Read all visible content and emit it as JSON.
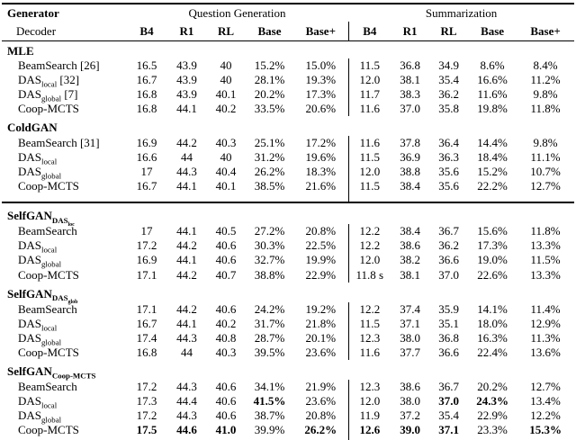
{
  "page": {
    "background": "#ffffff",
    "text_color": "#000000"
  },
  "table": {
    "header": {
      "generator_label": "Generator",
      "decoder_label": "Decoder",
      "group_question_generation": "Question Generation",
      "group_summarization": "Summarization",
      "metrics": [
        "B4",
        "R1",
        "RL",
        "Base",
        "Base+"
      ]
    },
    "sections": [
      {
        "title": "MLE",
        "rows": [
          {
            "label": "BeamSearch [26]",
            "values": [
              "16.5",
              "43.9",
              "40",
              "15.2%",
              "15.0%",
              "11.5",
              "36.8",
              "34.9",
              "8.6%",
              "8.4%"
            ],
            "bold": []
          },
          {
            "label": "DAS_{local} [32]",
            "values": [
              "16.7",
              "43.9",
              "40",
              "28.1%",
              "19.3%",
              "12.0",
              "38.1",
              "35.4",
              "16.6%",
              "11.2%"
            ],
            "bold": []
          },
          {
            "label": "DAS_{global} [7]",
            "values": [
              "16.8",
              "43.9",
              "40.1",
              "20.2%",
              "17.3%",
              "11.7",
              "38.3",
              "36.2",
              "11.6%",
              "9.8%"
            ],
            "bold": []
          },
          {
            "label": "Coop-MCTS",
            "values": [
              "16.8",
              "44.1",
              "40.2",
              "33.5%",
              "20.6%",
              "11.6",
              "37.0",
              "35.8",
              "19.8%",
              "11.8%"
            ],
            "bold": []
          }
        ]
      },
      {
        "title": "ColdGAN",
        "rows": [
          {
            "label": "BeamSearch [31]",
            "values": [
              "16.9",
              "44.2",
              "40.3",
              "25.1%",
              "17.2%",
              "11.6",
              "37.8",
              "36.4",
              "14.4%",
              "9.8%"
            ],
            "bold": []
          },
          {
            "label": "DAS_{local}",
            "values": [
              "16.6",
              "44",
              "40",
              "31.2%",
              "19.6%",
              "11.5",
              "36.9",
              "36.3",
              "18.4%",
              "11.1%"
            ],
            "bold": []
          },
          {
            "label": "DAS_{global}",
            "values": [
              "17",
              "44.3",
              "40.4",
              "26.2%",
              "18.3%",
              "12.0",
              "38.8",
              "35.6",
              "15.2%",
              "10.7%"
            ],
            "bold": []
          },
          {
            "label": "Coop-MCTS",
            "values": [
              "16.7",
              "44.1",
              "40.1",
              "38.5%",
              "21.6%",
              "11.5",
              "38.4",
              "35.6",
              "22.2%",
              "12.7%"
            ],
            "bold": []
          }
        ]
      },
      {
        "title": "SelfGAN_{DAS_{loc}}",
        "divider_above": true,
        "rows": [
          {
            "label": "BeamSearch",
            "values": [
              "17",
              "44.1",
              "40.5",
              "27.2%",
              "20.8%",
              "12.2",
              "38.4",
              "36.7",
              "15.6%",
              "11.8%"
            ],
            "bold": []
          },
          {
            "label": "DAS_{local}",
            "values": [
              "17.2",
              "44.2",
              "40.6",
              "30.3%",
              "22.5%",
              "12.2",
              "38.6",
              "36.2",
              "17.3%",
              "13.3%"
            ],
            "bold": []
          },
          {
            "label": "DAS_{global}",
            "values": [
              "16.9",
              "44.1",
              "40.6",
              "32.7%",
              "19.9%",
              "12.0",
              "38.2",
              "36.6",
              "19.0%",
              "11.5%"
            ],
            "bold": []
          },
          {
            "label": "Coop-MCTS",
            "values": [
              "17.1",
              "44.2",
              "40.7",
              "38.8%",
              "22.9%",
              "11.8 s",
              "38.1",
              "37.0",
              "22.6%",
              "13.3%"
            ],
            "bold": []
          }
        ]
      },
      {
        "title": "SelfGAN_{DAS_{glob}}",
        "rows": [
          {
            "label": "BeamSearch",
            "values": [
              "17.1",
              "44.2",
              "40.6",
              "24.2%",
              "19.2%",
              "12.2",
              "37.4",
              "35.9",
              "14.1%",
              "11.4%"
            ],
            "bold": []
          },
          {
            "label": "DAS_{local}",
            "values": [
              "16.7",
              "44.1",
              "40.2",
              "31.7%",
              "21.8%",
              "11.5",
              "37.1",
              "35.1",
              "18.0%",
              "12.9%"
            ],
            "bold": []
          },
          {
            "label": "DAS_{global}",
            "values": [
              "17.4",
              "44.3",
              "40.8",
              "28.7%",
              "20.1%",
              "12.3",
              "38.0",
              "36.8",
              "16.3%",
              "11.3%"
            ],
            "bold": []
          },
          {
            "label": "Coop-MCTS",
            "values": [
              "16.8",
              "44",
              "40.3",
              "39.5%",
              "23.6%",
              "11.6",
              "37.7",
              "36.6",
              "22.4%",
              "13.6%"
            ],
            "bold": []
          }
        ]
      },
      {
        "title": "SelfGAN_{Coop-MCTS}",
        "rows": [
          {
            "label": "BeamSearch",
            "values": [
              "17.2",
              "44.3",
              "40.6",
              "34.1%",
              "21.9%",
              "12.3",
              "38.6",
              "36.7",
              "20.2%",
              "12.7%"
            ],
            "bold": []
          },
          {
            "label": "DAS_{local}",
            "values": [
              "17.3",
              "44.4",
              "40.6",
              "41.5%",
              "23.6%",
              "12.0",
              "38.0",
              "37.0",
              "24.3%",
              "13.4%"
            ],
            "bold": [
              3,
              7,
              8
            ]
          },
          {
            "label": "DAS_{global}",
            "values": [
              "17.2",
              "44.3",
              "40.6",
              "38.7%",
              "20.8%",
              "11.9",
              "37.2",
              "35.4",
              "22.9%",
              "12.2%"
            ],
            "bold": []
          },
          {
            "label": "Coop-MCTS",
            "values": [
              "17.5",
              "44.6",
              "41.0",
              "39.9%",
              "26.2%",
              "12.6",
              "39.0",
              "37.1",
              "23.3%",
              "15.3%"
            ],
            "bold": [
              0,
              1,
              2,
              4,
              5,
              6,
              7,
              9
            ]
          }
        ]
      }
    ]
  }
}
